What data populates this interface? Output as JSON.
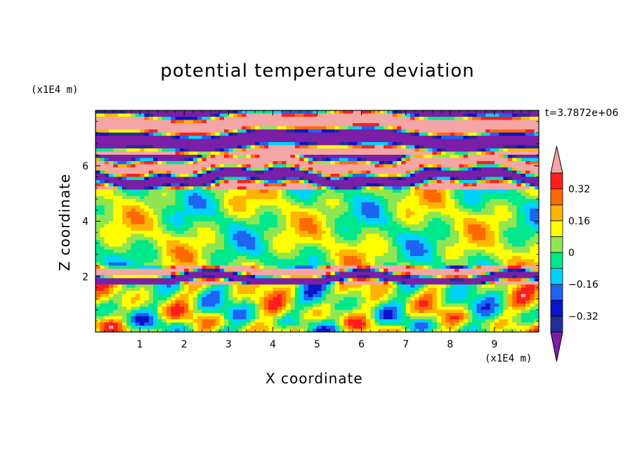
{
  "chart_data": {
    "type": "heatmap",
    "title": "potential temperature deviation",
    "xlabel": "X coordinate",
    "ylabel": "Z coordinate",
    "x_unit": "(x1E4 m)",
    "y_unit": "(x1E4 m)",
    "time_label": "t=3.7872e+06",
    "x_ticks": [
      1,
      2,
      3,
      4,
      5,
      6,
      7,
      8,
      9
    ],
    "y_ticks": [
      2,
      4,
      6
    ],
    "xlim": [
      0,
      10
    ],
    "ylim": [
      0,
      8
    ],
    "colorbar": {
      "tick_labels": [
        "0.32",
        "0.16",
        "0",
        "−0.16",
        "−0.32"
      ],
      "tick_values": [
        0.32,
        0.16,
        0,
        -0.16,
        -0.32
      ],
      "levels": [
        -0.4,
        -0.32,
        -0.24,
        -0.16,
        -0.08,
        0,
        0.08,
        0.16,
        0.24,
        0.32,
        0.4
      ],
      "colors": [
        "#7a1fa6",
        "#232d9c",
        "#0a14c8",
        "#1e64f0",
        "#00d2ff",
        "#00e88c",
        "#90e650",
        "#ffff00",
        "#ffb400",
        "#ff6a00",
        "#ff1e1e",
        "#f4a6a6"
      ],
      "extend": "both"
    }
  }
}
